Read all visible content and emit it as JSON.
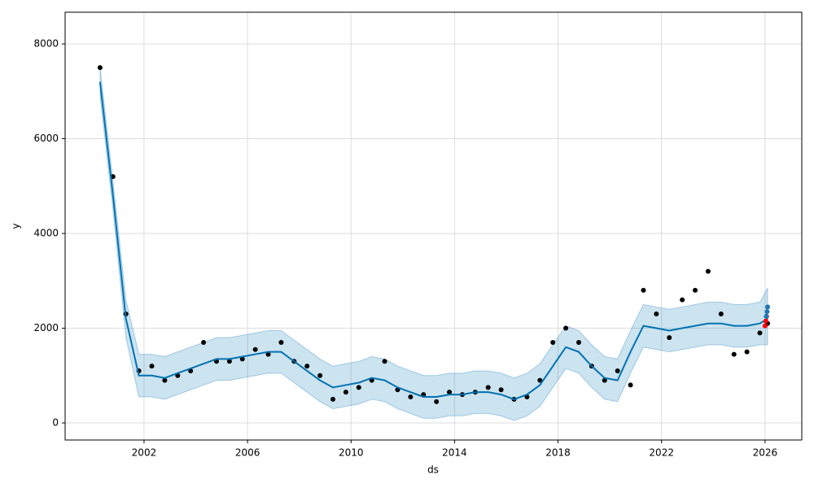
{
  "chart_data": {
    "type": "forecast",
    "x_label": "ds",
    "y_label": "y",
    "xlim": [
      1998.95,
      2027.42
    ],
    "ylim": [
      -360,
      8670
    ],
    "xticks": [
      2002,
      2006,
      2010,
      2014,
      2018,
      2022,
      2026
    ],
    "yticks": [
      0,
      2000,
      4000,
      6000,
      8000
    ],
    "grid": true,
    "x": [
      2000.3,
      2000.8,
      2001.3,
      2001.8,
      2002.3,
      2002.8,
      2003.3,
      2003.8,
      2004.3,
      2004.8,
      2005.3,
      2005.8,
      2006.3,
      2006.8,
      2007.3,
      2007.8,
      2008.3,
      2008.8,
      2009.3,
      2009.8,
      2010.3,
      2010.8,
      2011.3,
      2011.8,
      2012.3,
      2012.8,
      2013.3,
      2013.8,
      2014.3,
      2014.8,
      2015.3,
      2015.8,
      2016.3,
      2016.8,
      2017.3,
      2017.8,
      2018.3,
      2018.8,
      2019.3,
      2019.8,
      2020.3,
      2020.8,
      2021.3,
      2021.8,
      2022.3,
      2022.8,
      2023.3,
      2023.8,
      2024.3,
      2024.8,
      2025.3,
      2025.8,
      2026.1
    ],
    "band": {
      "color": "#0072b2",
      "lower": [
        6900,
        4500,
        1800,
        550,
        550,
        500,
        600,
        700,
        800,
        900,
        900,
        950,
        1000,
        1050,
        1050,
        850,
        650,
        450,
        300,
        350,
        400,
        500,
        450,
        300,
        200,
        100,
        100,
        150,
        150,
        200,
        200,
        150,
        50,
        150,
        350,
        750,
        1150,
        1050,
        750,
        500,
        450,
        1050,
        1600,
        1550,
        1500,
        1550,
        1600,
        1650,
        1650,
        1600,
        1600,
        1650,
        1650
      ],
      "upper": [
        7500,
        5100,
        2600,
        1450,
        1450,
        1400,
        1500,
        1600,
        1700,
        1800,
        1800,
        1850,
        1900,
        1950,
        1950,
        1750,
        1550,
        1350,
        1200,
        1250,
        1300,
        1400,
        1350,
        1200,
        1100,
        1000,
        1000,
        1050,
        1050,
        1100,
        1100,
        1050,
        950,
        1050,
        1250,
        1650,
        2050,
        1950,
        1650,
        1400,
        1350,
        1950,
        2500,
        2450,
        2400,
        2450,
        2500,
        2550,
        2550,
        2500,
        2500,
        2550,
        2850
      ]
    },
    "series": [
      {
        "type": "scatter",
        "color": "#000000",
        "values": [
          7500,
          5200,
          2300,
          1100,
          1200,
          900,
          1000,
          1100,
          1700,
          1300,
          1300,
          1350,
          1550,
          1450,
          1700,
          1300,
          1200,
          1000,
          500,
          650,
          750,
          900,
          1300,
          700,
          550,
          600,
          450,
          650,
          600,
          650,
          750,
          700,
          500,
          550,
          900,
          1700,
          2000,
          1700,
          1200,
          900,
          1100,
          800,
          2800,
          2300,
          1800,
          2600,
          2800,
          3200,
          2300,
          1450,
          1500,
          1900,
          2100
        ]
      },
      {
        "type": "line",
        "color": "#0072b2",
        "values": [
          7200,
          4800,
          2200,
          1000,
          1000,
          950,
          1050,
          1150,
          1250,
          1350,
          1350,
          1400,
          1450,
          1500,
          1500,
          1300,
          1100,
          900,
          750,
          800,
          850,
          950,
          900,
          750,
          650,
          550,
          550,
          600,
          600,
          650,
          650,
          600,
          500,
          600,
          800,
          1200,
          1600,
          1500,
          1200,
          950,
          900,
          1500,
          2050,
          2000,
          1950,
          2000,
          2050,
          2100,
          2100,
          2050,
          2050,
          2100,
          2200
        ]
      },
      {
        "type": "scatter",
        "color": "#ff0000",
        "x": [
          2026.0,
          2026.03,
          2026.06
        ],
        "values": [
          2050,
          2150,
          2250
        ]
      },
      {
        "type": "scatter",
        "color": "#1f77b4",
        "x": [
          2026.05,
          2026.08,
          2026.1
        ],
        "values": [
          2250,
          2350,
          2450
        ]
      }
    ]
  }
}
